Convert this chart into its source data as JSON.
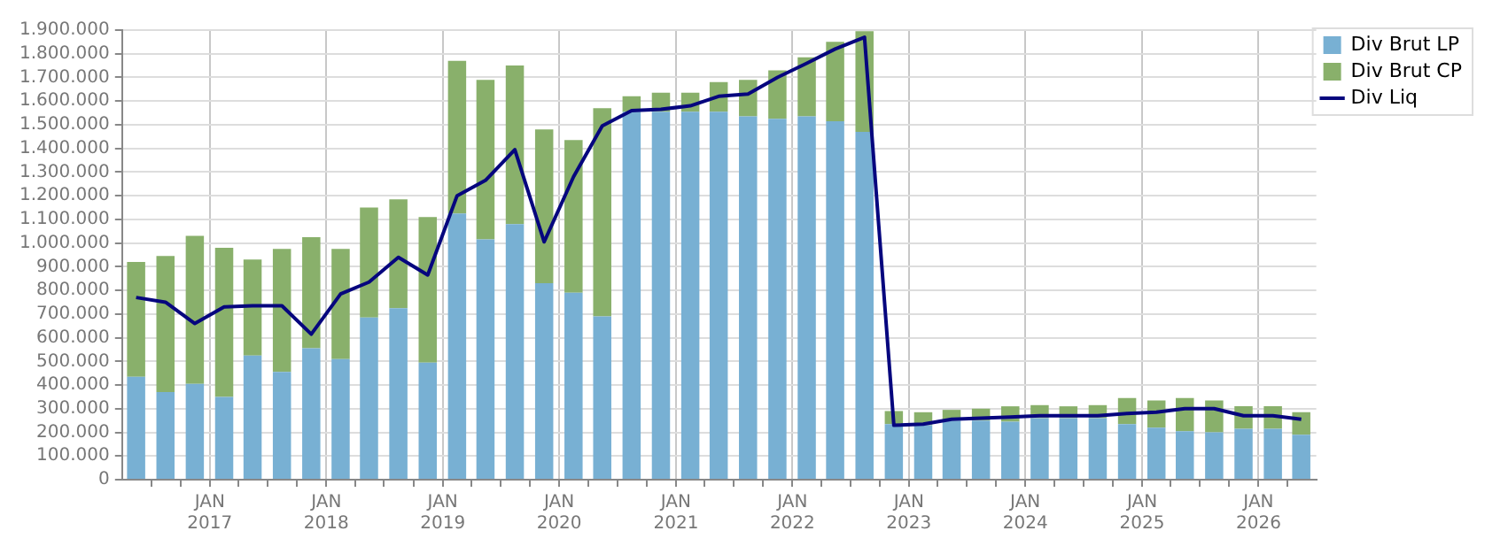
{
  "chart_data": {
    "type": "bar",
    "stacked": true,
    "legend": "top right",
    "grid": true,
    "marker": "none",
    "x": [
      "2016-05-15",
      "2016-08-15",
      "2016-11-15",
      "2017-02-15",
      "2017-05-15",
      "2017-08-15",
      "2017-11-15",
      "2018-02-15",
      "2018-05-15",
      "2018-08-15",
      "2018-11-15",
      "2019-02-15",
      "2019-05-15",
      "2019-08-15",
      "2019-11-15",
      "2020-02-15",
      "2020-05-15",
      "2020-08-15",
      "2020-11-15",
      "2021-02-15",
      "2021-05-15",
      "2021-08-15",
      "2021-11-15",
      "2022-02-15",
      "2022-05-15",
      "2022-08-15",
      "2022-11-15",
      "2023-02-15",
      "2023-05-15",
      "2023-08-15",
      "2023-11-15",
      "2024-02-15",
      "2024-05-15",
      "2024-08-15",
      "2024-11-15",
      "2025-02-15",
      "2025-05-15",
      "2025-08-15",
      "2025-11-15",
      "2026-02-15",
      "2026-05-15"
    ],
    "series": [
      {
        "name": "Div Brut LP",
        "color": "#78b0d3",
        "values": [
          435000,
          370000,
          405000,
          350000,
          525000,
          455000,
          555000,
          510000,
          685000,
          725000,
          495000,
          1125000,
          1015000,
          1080000,
          830000,
          790000,
          690000,
          1555000,
          1555000,
          1555000,
          1555000,
          1535000,
          1525000,
          1535000,
          1515000,
          1470000,
          235000,
          230000,
          250000,
          250000,
          245000,
          260000,
          260000,
          260000,
          235000,
          220000,
          205000,
          200000,
          215000,
          215000,
          190000
        ]
      },
      {
        "name": "Div Brut CP",
        "color": "#89b06b",
        "values": [
          485000,
          575000,
          625000,
          630000,
          405000,
          520000,
          470000,
          465000,
          465000,
          460000,
          615000,
          645000,
          675000,
          670000,
          650000,
          645000,
          880000,
          65000,
          80000,
          80000,
          125000,
          155000,
          205000,
          250000,
          335000,
          425000,
          55000,
          55000,
          45000,
          50000,
          65000,
          55000,
          50000,
          55000,
          110000,
          115000,
          140000,
          135000,
          95000,
          95000,
          95000
        ]
      },
      {
        "name": "Div Liq",
        "type": "line",
        "color": "#06067e",
        "values": [
          770000,
          750000,
          660000,
          730000,
          735000,
          735000,
          615000,
          785000,
          835000,
          940000,
          865000,
          1200000,
          1265000,
          1395000,
          1005000,
          1280000,
          1495000,
          1560000,
          1565000,
          1580000,
          1620000,
          1630000,
          1700000,
          1760000,
          1820000,
          1870000,
          230000,
          235000,
          255000,
          260000,
          265000,
          270000,
          270000,
          270000,
          280000,
          285000,
          300000,
          300000,
          270000,
          270000,
          255000
        ]
      }
    ],
    "xlim": [
      "2016-04",
      "2026-07"
    ],
    "xticks": [
      {
        "value": "2016-07",
        "label": null
      },
      {
        "value": "2016-10",
        "label": null
      },
      {
        "value": "2017-01",
        "label": "JAN 2017"
      },
      {
        "value": "2017-04",
        "label": null
      },
      {
        "value": "2017-07",
        "label": null
      },
      {
        "value": "2017-10",
        "label": null
      },
      {
        "value": "2018-01",
        "label": "JAN 2018"
      },
      {
        "value": "2018-04",
        "label": null
      },
      {
        "value": "2018-07",
        "label": null
      },
      {
        "value": "2018-10",
        "label": null
      },
      {
        "value": "2019-01",
        "label": "JAN 2019"
      },
      {
        "value": "2019-04",
        "label": null
      },
      {
        "value": "2019-07",
        "label": null
      },
      {
        "value": "2019-10",
        "label": null
      },
      {
        "value": "2020-01",
        "label": "JAN 2020"
      },
      {
        "value": "2020-04",
        "label": null
      },
      {
        "value": "2020-07",
        "label": null
      },
      {
        "value": "2020-10",
        "label": null
      },
      {
        "value": "2021-01",
        "label": "JAN 2021"
      },
      {
        "value": "2021-04",
        "label": null
      },
      {
        "value": "2021-07",
        "label": null
      },
      {
        "value": "2021-10",
        "label": null
      },
      {
        "value": "2022-01",
        "label": "JAN 2022"
      },
      {
        "value": "2022-04",
        "label": null
      },
      {
        "value": "2022-07",
        "label": null
      },
      {
        "value": "2022-10",
        "label": null
      },
      {
        "value": "2023-01",
        "label": "JAN 2023"
      },
      {
        "value": "2023-04",
        "label": null
      },
      {
        "value": "2023-07",
        "label": null
      },
      {
        "value": "2023-10",
        "label": null
      },
      {
        "value": "2024-01",
        "label": "JAN 2024"
      },
      {
        "value": "2024-04",
        "label": null
      },
      {
        "value": "2024-07",
        "label": null
      },
      {
        "value": "2024-10",
        "label": null
      },
      {
        "value": "2025-01",
        "label": "JAN 2025"
      },
      {
        "value": "2025-04",
        "label": null
      },
      {
        "value": "2025-07",
        "label": null
      },
      {
        "value": "2025-10",
        "label": null
      },
      {
        "value": "2026-01",
        "label": "JAN 2026"
      },
      {
        "value": "2026-04",
        "label": null
      }
    ],
    "ylim": [
      0,
      1900000
    ],
    "yticks": [
      {
        "value": 0,
        "label": "0"
      },
      {
        "value": 100000,
        "label": "100.000"
      },
      {
        "value": 200000,
        "label": "200.000"
      },
      {
        "value": 300000,
        "label": "300.000"
      },
      {
        "value": 400000,
        "label": "400.000"
      },
      {
        "value": 500000,
        "label": "500.000"
      },
      {
        "value": 600000,
        "label": "600.000"
      },
      {
        "value": 700000,
        "label": "700.000"
      },
      {
        "value": 800000,
        "label": "800.000"
      },
      {
        "value": 900000,
        "label": "900.000"
      },
      {
        "value": 1000000,
        "label": "1.000.000"
      },
      {
        "value": 1100000,
        "label": "1.100.000"
      },
      {
        "value": 1200000,
        "label": "1.200.000"
      },
      {
        "value": 1300000,
        "label": "1.300.000"
      },
      {
        "value": 1400000,
        "label": "1.400.000"
      },
      {
        "value": 1500000,
        "label": "1.500.000"
      },
      {
        "value": 1600000,
        "label": "1.600.000"
      },
      {
        "value": 1700000,
        "label": "1.700.000"
      },
      {
        "value": 1800000,
        "label": "1.800.000"
      },
      {
        "value": 1900000,
        "label": "1.900.000"
      }
    ]
  }
}
